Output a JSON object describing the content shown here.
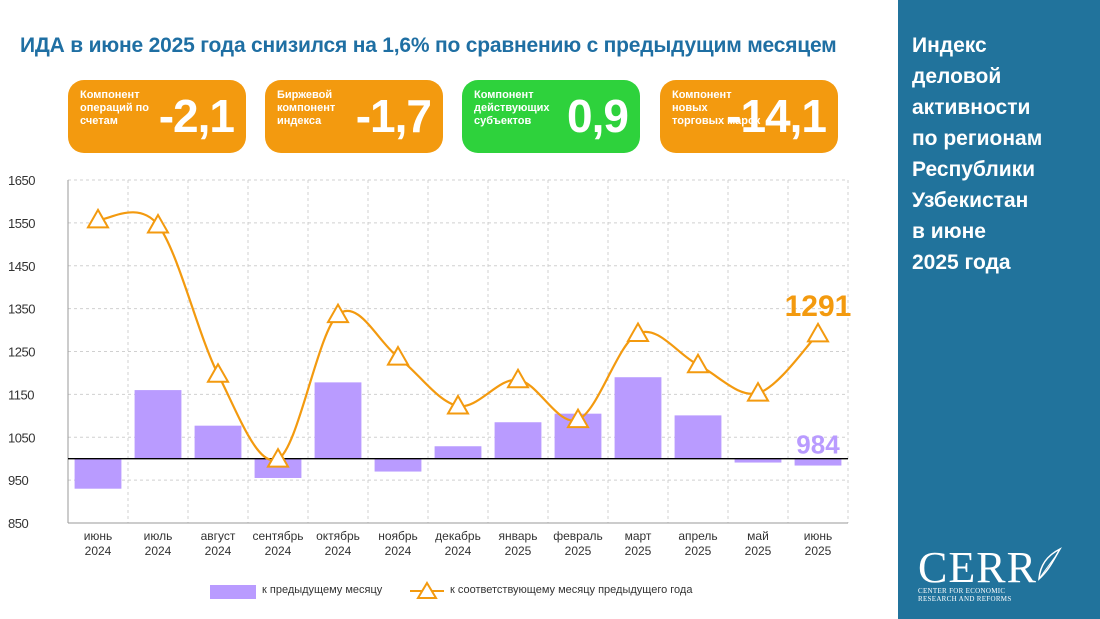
{
  "title": "ИДА в июне 2025 года снизился на 1,6% по сравнению с предыдущим месяцем",
  "cards": [
    {
      "label": "Компонент операций по счетам",
      "value": "-2,1",
      "color": "#f39a0f"
    },
    {
      "label": "Биржевой компонент индекса",
      "value": "-1,7",
      "color": "#f39a0f"
    },
    {
      "label": "Компонент действующих субъектов",
      "value": "0,9",
      "color": "#2ed23c"
    },
    {
      "label": "Компонент новых торговых марок",
      "value": "-14,1",
      "color": "#f39a0f"
    }
  ],
  "side_panel": {
    "title": "Индекс\nделовой\nактивности\nпо регионам\nРеспублики\nУзбекистан\nв июне\n2025 года",
    "color": "#21739c"
  },
  "logo": {
    "name": "CERR",
    "subtitle": "CENTER FOR ECONOMIC\nRESEARCH AND REFORMS"
  },
  "chart_data": {
    "type": "bar",
    "categories": [
      [
        "июнь",
        "2024"
      ],
      [
        "июль",
        "2024"
      ],
      [
        "август",
        "2024"
      ],
      [
        "сентябрь",
        "2024"
      ],
      [
        "октябрь",
        "2024"
      ],
      [
        "ноябрь",
        "2024"
      ],
      [
        "декабрь",
        "2024"
      ],
      [
        "январь",
        "2025"
      ],
      [
        "февраль",
        "2025"
      ],
      [
        "март",
        "2025"
      ],
      [
        "апрель",
        "2025"
      ],
      [
        "май",
        "2025"
      ],
      [
        "июнь",
        "2025"
      ]
    ],
    "baseline": 1000,
    "ylim": [
      850,
      1650
    ],
    "yticks": [
      850,
      950,
      1050,
      1150,
      1250,
      1350,
      1450,
      1550,
      1650
    ],
    "grid": true,
    "series": [
      {
        "name": "к предыдущему месяцу",
        "type": "bar",
        "color": "#b99bff",
        "values": [
          930,
          1160,
          1077,
          955,
          1178,
          970,
          1029,
          1085,
          1105,
          1190,
          1101,
          991,
          984
        ]
      },
      {
        "name": "к соответствующему месяцу предыдущего года",
        "type": "line",
        "color": "#f39a0f",
        "values": [
          1557,
          1545,
          1197,
          999,
          1336,
          1237,
          1123,
          1184,
          1091,
          1292,
          1219,
          1153,
          1291
        ]
      }
    ],
    "annotations": [
      {
        "series": 1,
        "index": 12,
        "text": "1291",
        "color": "#f39a0f"
      },
      {
        "series": 0,
        "index": 12,
        "text": "984",
        "color": "#b99bff"
      }
    ],
    "legend_position": "bottom"
  }
}
